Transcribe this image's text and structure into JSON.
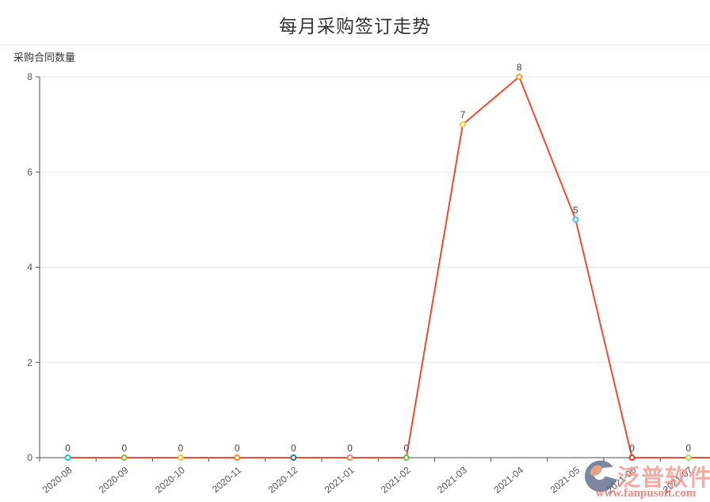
{
  "header": {
    "title": "每月采购签订走势"
  },
  "chart_data": {
    "type": "line",
    "title": "每月采购签订走势",
    "ylabel": "采购合同数量",
    "xlabel": "",
    "categories": [
      "2020-08",
      "2020-09",
      "2020-10",
      "2020-11",
      "2020-12",
      "2021-01",
      "2021-02",
      "2021-03",
      "2021-04",
      "2021-05",
      "2021-06",
      "2021-07"
    ],
    "values": [
      0,
      0,
      0,
      0,
      0,
      0,
      0,
      7,
      8,
      5,
      0,
      0
    ],
    "ylim": [
      0,
      8
    ],
    "yticks": [
      0,
      2,
      4,
      6,
      8
    ],
    "grid": true,
    "legend": "none",
    "x_label_rotation": -40,
    "line_color": "#ee4b35",
    "point_colors": [
      "#1fc2ca",
      "#a2b529",
      "#fdc21d",
      "#fd8b20",
      "#1d7d89",
      "#fd7e5e",
      "#66c23e",
      "#fdc53d",
      "#fd9a30",
      "#4ebdf2",
      "#e2372a",
      "#bdd44f"
    ],
    "axis_color": "#4d4d4d",
    "tick_label_color": "#555555",
    "grid_color": "#dfe5f0",
    "value_label_color": "#404040"
  },
  "watermark": {
    "brand": "泛普软件",
    "url": "www.fanpusoft.com"
  }
}
